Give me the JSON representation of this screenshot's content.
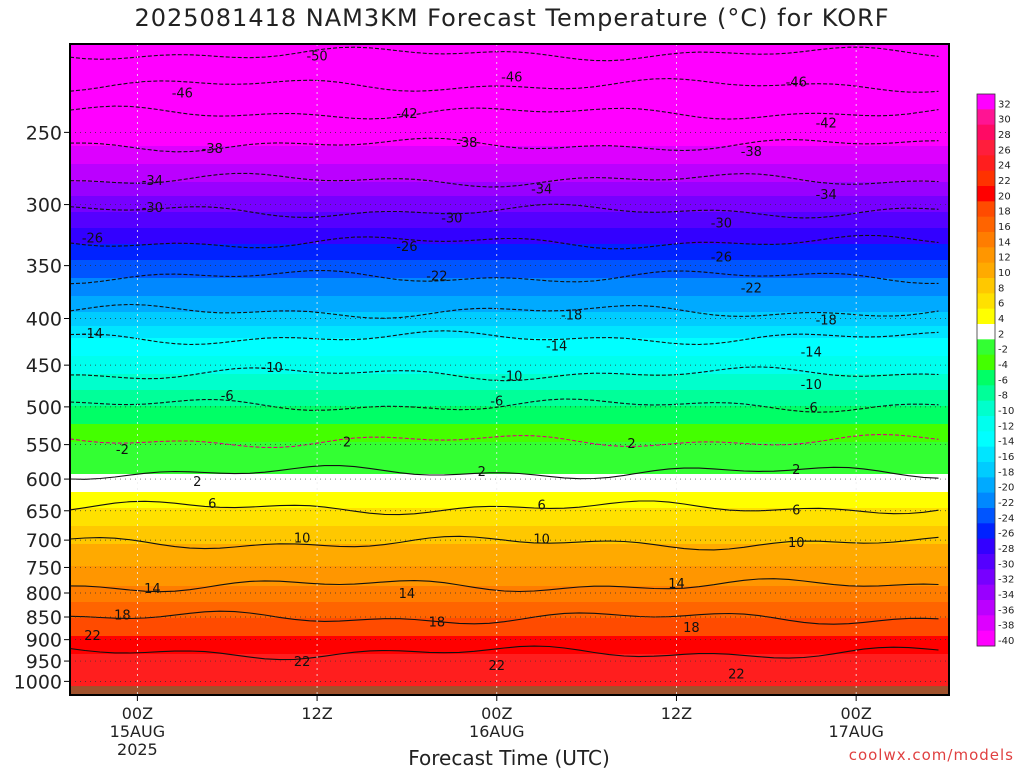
{
  "chart_data": {
    "type": "heatmap",
    "title": "2025081418 NAM3KM Forecast Temperature (°C) for KORF",
    "xlabel": "Forecast Time (UTC)",
    "ylabel": "",
    "y_scale": "log",
    "y_inverted": true,
    "y_ticks": [
      250,
      300,
      350,
      400,
      450,
      500,
      550,
      600,
      650,
      700,
      750,
      800,
      850,
      900,
      950,
      1000
    ],
    "x_ticks": [
      {
        "hour": 6,
        "label": "00Z",
        "sub": "15AUG",
        "sub2": "2025"
      },
      {
        "hour": 18,
        "label": "12Z",
        "sub": "",
        "sub2": ""
      },
      {
        "hour": 30,
        "label": "00Z",
        "sub": "16AUG",
        "sub2": ""
      },
      {
        "hour": 42,
        "label": "12Z",
        "sub": "",
        "sub2": ""
      },
      {
        "hour": 54,
        "label": "00Z",
        "sub": "17AUG",
        "sub2": ""
      }
    ],
    "grid": true,
    "colorbar_labels": [
      32,
      30,
      28,
      26,
      24,
      22,
      20,
      18,
      16,
      14,
      12,
      10,
      8,
      6,
      4,
      2,
      -2,
      -4,
      -6,
      -8,
      -10,
      -12,
      -14,
      -16,
      -18,
      -20,
      -22,
      -24,
      -26,
      -28,
      -30,
      -32,
      -34,
      -36,
      -38,
      -40
    ],
    "colorbar_colors": [
      "#ff00ff",
      "#ff1493",
      "#ff0a64",
      "#ff1e3c",
      "#ff1e1e",
      "#ff3200",
      "#ff0000",
      "#ff4b00",
      "#ff6400",
      "#ff7d00",
      "#ff9600",
      "#ffaa00",
      "#ffc800",
      "#ffe100",
      "#ffff00",
      "#ffffff",
      "#33ff33",
      "#44ff00",
      "#00ff66",
      "#00ff99",
      "#00ffcc",
      "#00ffee",
      "#00ffff",
      "#00e5ff",
      "#00ccff",
      "#00aaff",
      "#0088ff",
      "#0055ff",
      "#0022ff",
      "#3300ff",
      "#5500ff",
      "#7700ff",
      "#9900ff",
      "#bb00ff",
      "#dd00ff",
      "#ff00ff"
    ],
    "contours": [
      {
        "value": -50,
        "pressure": 205
      },
      {
        "value": -46,
        "pressure": 222
      },
      {
        "value": -42,
        "pressure": 238
      },
      {
        "value": -38,
        "pressure": 258
      },
      {
        "value": -34,
        "pressure": 282
      },
      {
        "value": -30,
        "pressure": 305
      },
      {
        "value": -26,
        "pressure": 330
      },
      {
        "value": -22,
        "pressure": 360
      },
      {
        "value": -18,
        "pressure": 393
      },
      {
        "value": -14,
        "pressure": 420
      },
      {
        "value": -10,
        "pressure": 460
      },
      {
        "value": -6,
        "pressure": 498
      },
      {
        "value": -2,
        "pressure": 545
      },
      {
        "value": 2,
        "pressure": 590
      },
      {
        "value": 6,
        "pressure": 645
      },
      {
        "value": 10,
        "pressure": 705
      },
      {
        "value": 14,
        "pressure": 785
      },
      {
        "value": 18,
        "pressure": 852
      },
      {
        "value": 22,
        "pressure": 930
      }
    ],
    "contour_labels": [
      {
        "text": "-50",
        "hour": 18,
        "pressure": 206
      },
      {
        "text": "-46",
        "hour": 9,
        "pressure": 226
      },
      {
        "text": "-46",
        "hour": 31,
        "pressure": 217
      },
      {
        "text": "-46",
        "hour": 50,
        "pressure": 220
      },
      {
        "text": "-42",
        "hour": 24,
        "pressure": 238
      },
      {
        "text": "-42",
        "hour": 52,
        "pressure": 244
      },
      {
        "text": "-38",
        "hour": 11,
        "pressure": 260
      },
      {
        "text": "-38",
        "hour": 28,
        "pressure": 256
      },
      {
        "text": "-38",
        "hour": 47,
        "pressure": 262
      },
      {
        "text": "-34",
        "hour": 7,
        "pressure": 282
      },
      {
        "text": "-34",
        "hour": 33,
        "pressure": 288
      },
      {
        "text": "-34",
        "hour": 52,
        "pressure": 292
      },
      {
        "text": "-30",
        "hour": 7,
        "pressure": 302
      },
      {
        "text": "-30",
        "hour": 27,
        "pressure": 310
      },
      {
        "text": "-30",
        "hour": 45,
        "pressure": 314
      },
      {
        "text": "-26",
        "hour": 3,
        "pressure": 326
      },
      {
        "text": "-26",
        "hour": 24,
        "pressure": 333
      },
      {
        "text": "-26",
        "hour": 45,
        "pressure": 342
      },
      {
        "text": "-22",
        "hour": 26,
        "pressure": 359
      },
      {
        "text": "-22",
        "hour": 47,
        "pressure": 370
      },
      {
        "text": "-18",
        "hour": 35,
        "pressure": 396
      },
      {
        "text": "-18",
        "hour": 52,
        "pressure": 401
      },
      {
        "text": "-14",
        "hour": 3,
        "pressure": 415
      },
      {
        "text": "-14",
        "hour": 34,
        "pressure": 428
      },
      {
        "text": "-14",
        "hour": 51,
        "pressure": 435
      },
      {
        "text": "-10",
        "hour": 15,
        "pressure": 452
      },
      {
        "text": "-10",
        "hour": 31,
        "pressure": 462
      },
      {
        "text": "-10",
        "hour": 51,
        "pressure": 472
      },
      {
        "text": "-6",
        "hour": 12,
        "pressure": 485
      },
      {
        "text": "-6",
        "hour": 30,
        "pressure": 492
      },
      {
        "text": "-6",
        "hour": 51,
        "pressure": 500
      },
      {
        "text": "-2",
        "hour": 5,
        "pressure": 556
      },
      {
        "text": "2",
        "hour": 20,
        "pressure": 546
      },
      {
        "text": "2",
        "hour": 39,
        "pressure": 548
      },
      {
        "text": "2",
        "hour": 10,
        "pressure": 603
      },
      {
        "text": "2",
        "hour": 29,
        "pressure": 588
      },
      {
        "text": "2",
        "hour": 50,
        "pressure": 585
      },
      {
        "text": "6",
        "hour": 11,
        "pressure": 637
      },
      {
        "text": "6",
        "hour": 33,
        "pressure": 640
      },
      {
        "text": "6",
        "hour": 50,
        "pressure": 648
      },
      {
        "text": "10",
        "hour": 1,
        "pressure": 712
      },
      {
        "text": "10",
        "hour": 17,
        "pressure": 695
      },
      {
        "text": "10",
        "hour": 33,
        "pressure": 697
      },
      {
        "text": "10",
        "hour": 50,
        "pressure": 703
      },
      {
        "text": "14",
        "hour": 7,
        "pressure": 790
      },
      {
        "text": "14",
        "hour": 24,
        "pressure": 800
      },
      {
        "text": "14",
        "hour": 42,
        "pressure": 780
      },
      {
        "text": "18",
        "hour": 5,
        "pressure": 845
      },
      {
        "text": "18",
        "hour": 26,
        "pressure": 860
      },
      {
        "text": "18",
        "hour": 43,
        "pressure": 872
      },
      {
        "text": "22",
        "hour": 3,
        "pressure": 890
      },
      {
        "text": "22",
        "hour": 17,
        "pressure": 950
      },
      {
        "text": "22",
        "hour": 30,
        "pressure": 960
      },
      {
        "text": "22",
        "hour": 46,
        "pressure": 980
      }
    ]
  },
  "watermark": "coolwx.com/models"
}
